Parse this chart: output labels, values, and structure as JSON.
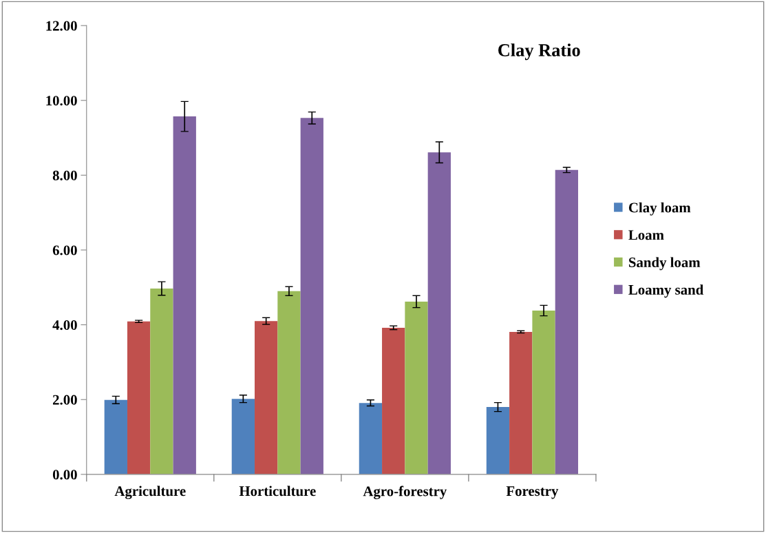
{
  "chart_data": {
    "type": "bar",
    "title": "Clay Ratio",
    "categories": [
      "Agriculture",
      "Horticulture",
      "Agro-forestry",
      "Forestry"
    ],
    "series": [
      {
        "name": "Clay loam",
        "color": "#4f81bd",
        "values": [
          1.99,
          2.02,
          1.91,
          1.8
        ],
        "errors": [
          0.1,
          0.1,
          0.08,
          0.12
        ]
      },
      {
        "name": "Loam",
        "color": "#c0504d",
        "values": [
          4.09,
          4.1,
          3.92,
          3.81
        ],
        "errors": [
          0.03,
          0.09,
          0.05,
          0.03
        ]
      },
      {
        "name": "Sandy loam",
        "color": "#9bbb59",
        "values": [
          4.97,
          4.9,
          4.62,
          4.38
        ],
        "errors": [
          0.18,
          0.12,
          0.16,
          0.14
        ]
      },
      {
        "name": "Loamy sand",
        "color": "#8064a2",
        "values": [
          9.57,
          9.53,
          8.61,
          8.14
        ],
        "errors": [
          0.4,
          0.16,
          0.28,
          0.07
        ]
      }
    ],
    "ylim": [
      0,
      12
    ],
    "yticks": [
      {
        "value": 0,
        "label": "0.00"
      },
      {
        "value": 2,
        "label": "2.00"
      },
      {
        "value": 4,
        "label": "4.00"
      },
      {
        "value": 6,
        "label": "6.00"
      },
      {
        "value": 8,
        "label": "8.00"
      },
      {
        "value": 10,
        "label": "10.00"
      },
      {
        "value": 12,
        "label": "12.00"
      }
    ],
    "grid": false,
    "legend": "right"
  }
}
